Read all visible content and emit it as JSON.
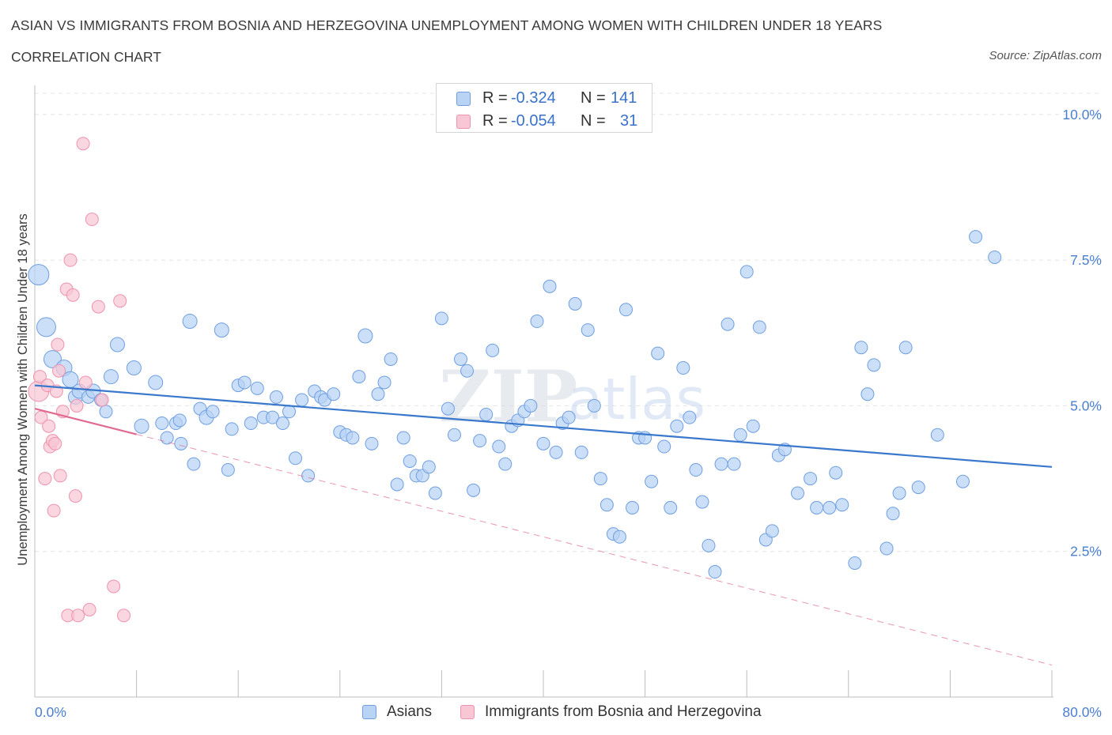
{
  "header": {
    "title": "ASIAN VS IMMIGRANTS FROM BOSNIA AND HERZEGOVINA UNEMPLOYMENT AMONG WOMEN WITH CHILDREN UNDER 18 YEARS",
    "subtitle": "CORRELATION CHART",
    "source": "Source: ZipAtlas.com"
  },
  "watermark": {
    "zip": "ZIP",
    "atlas": "atlas"
  },
  "legend_top": {
    "rows": [
      {
        "r_label": "R =",
        "r_value": "-0.324",
        "n_label": "N =",
        "n_value": "141"
      },
      {
        "r_label": "R =",
        "r_value": "-0.054",
        "n_label": "N =",
        "n_value": "31"
      }
    ]
  },
  "legend_bottom": {
    "items": [
      {
        "label": "Asians"
      },
      {
        "label": "Immigrants from Bosnia and Herzegovina"
      }
    ]
  },
  "colors": {
    "asian_fill": "#b9d3f5",
    "asian_stroke": "#6f9fe0",
    "asian_line": "#3a78cc",
    "bosnia_fill": "#f8c6d4",
    "bosnia_stroke": "#ee93ad",
    "bosnia_line": "#e06a90",
    "grid": "#e4e4e4",
    "axis_label": "#4a7fd0"
  },
  "chart_data": {
    "type": "scatter",
    "title": "ASIAN VS IMMIGRANTS FROM BOSNIA AND HERZEGOVINA UNEMPLOYMENT AMONG WOMEN WITH CHILDREN UNDER 18 YEARS",
    "xlabel": "",
    "ylabel": "Unemployment Among Women with Children Under 18 years",
    "xlim": [
      0,
      80
    ],
    "ylim": [
      0,
      10.5
    ],
    "x_tick_labels": [
      "0.0%",
      "80.0%"
    ],
    "y_ticks": [
      2.5,
      5.0,
      7.5,
      10.0
    ],
    "y_tick_labels": [
      "2.5%",
      "5.0%",
      "7.5%",
      "10.0%"
    ],
    "grid": true,
    "legend_position": "bottom-center",
    "series": [
      {
        "name": "Asians",
        "r": -0.324,
        "n": 141,
        "trend": {
          "x": [
            0,
            80
          ],
          "y": [
            5.35,
            3.95
          ]
        },
        "points": [
          [
            0.3,
            7.25,
            13
          ],
          [
            0.9,
            6.35,
            12
          ],
          [
            1.4,
            5.8,
            11
          ],
          [
            2.3,
            5.65,
            10
          ],
          [
            2.8,
            5.45,
            10
          ],
          [
            3.2,
            5.15,
            9
          ],
          [
            3.5,
            5.25,
            9
          ],
          [
            4.2,
            5.15,
            8
          ],
          [
            4.6,
            5.25,
            9
          ],
          [
            5.2,
            5.1,
            8
          ],
          [
            5.6,
            4.9,
            8
          ],
          [
            6.0,
            5.5,
            9
          ],
          [
            6.5,
            6.05,
            9
          ],
          [
            7.8,
            5.65,
            9
          ],
          [
            8.4,
            4.65,
            9
          ],
          [
            9.5,
            5.4,
            9
          ],
          [
            10.0,
            4.7,
            8
          ],
          [
            10.4,
            4.45,
            8
          ],
          [
            11.1,
            4.7,
            8
          ],
          [
            11.5,
            4.35,
            8
          ],
          [
            11.4,
            4.75,
            8
          ],
          [
            12.2,
            6.45,
            9
          ],
          [
            12.5,
            4.0,
            8
          ],
          [
            13.0,
            4.95,
            8
          ],
          [
            13.5,
            4.8,
            9
          ],
          [
            14.0,
            4.9,
            8
          ],
          [
            14.7,
            6.3,
            9
          ],
          [
            15.2,
            3.9,
            8
          ],
          [
            15.5,
            4.6,
            8
          ],
          [
            16.0,
            5.35,
            8
          ],
          [
            16.5,
            5.4,
            8
          ],
          [
            17.0,
            4.7,
            8
          ],
          [
            17.5,
            5.3,
            8
          ],
          [
            18.0,
            4.8,
            8
          ],
          [
            18.7,
            4.8,
            8
          ],
          [
            19.0,
            5.15,
            8
          ],
          [
            19.5,
            4.7,
            8
          ],
          [
            20.0,
            4.9,
            8
          ],
          [
            20.5,
            4.1,
            8
          ],
          [
            21.0,
            5.1,
            8
          ],
          [
            21.5,
            3.8,
            8
          ],
          [
            22.0,
            5.25,
            8
          ],
          [
            22.5,
            5.15,
            8
          ],
          [
            22.8,
            5.1,
            8
          ],
          [
            23.5,
            5.2,
            8
          ],
          [
            24.0,
            4.55,
            8
          ],
          [
            24.5,
            4.5,
            8
          ],
          [
            25.0,
            4.45,
            8
          ],
          [
            25.5,
            5.5,
            8
          ],
          [
            26.0,
            6.2,
            9
          ],
          [
            26.5,
            4.35,
            8
          ],
          [
            27.0,
            5.2,
            8
          ],
          [
            27.5,
            5.4,
            8
          ],
          [
            28.0,
            5.8,
            8
          ],
          [
            28.5,
            3.65,
            8
          ],
          [
            29.0,
            4.45,
            8
          ],
          [
            29.5,
            4.05,
            8
          ],
          [
            30.0,
            3.8,
            8
          ],
          [
            30.5,
            3.8,
            8
          ],
          [
            31.0,
            3.95,
            8
          ],
          [
            31.5,
            3.5,
            8
          ],
          [
            32.0,
            6.5,
            8
          ],
          [
            32.5,
            4.95,
            8
          ],
          [
            33.0,
            4.5,
            8
          ],
          [
            33.5,
            5.8,
            8
          ],
          [
            34.0,
            5.6,
            8
          ],
          [
            34.5,
            3.55,
            8
          ],
          [
            35.0,
            4.4,
            8
          ],
          [
            35.5,
            4.85,
            8
          ],
          [
            36.0,
            5.95,
            8
          ],
          [
            36.5,
            4.3,
            8
          ],
          [
            37.0,
            4.0,
            8
          ],
          [
            37.5,
            4.65,
            8
          ],
          [
            38.0,
            4.75,
            8
          ],
          [
            38.5,
            4.9,
            8
          ],
          [
            39.0,
            5.0,
            8
          ],
          [
            39.5,
            6.45,
            8
          ],
          [
            40.0,
            4.35,
            8
          ],
          [
            40.5,
            7.05,
            8
          ],
          [
            41.0,
            4.2,
            8
          ],
          [
            41.5,
            4.7,
            8
          ],
          [
            42.0,
            4.8,
            8
          ],
          [
            42.5,
            6.75,
            8
          ],
          [
            43.0,
            4.2,
            8
          ],
          [
            43.5,
            6.3,
            8
          ],
          [
            44.0,
            5.0,
            8
          ],
          [
            44.5,
            3.75,
            8
          ],
          [
            45.0,
            3.3,
            8
          ],
          [
            45.5,
            2.8,
            8
          ],
          [
            46.0,
            2.75,
            8
          ],
          [
            46.5,
            6.65,
            8
          ],
          [
            47.0,
            3.25,
            8
          ],
          [
            47.5,
            4.45,
            8
          ],
          [
            48.0,
            4.45,
            8
          ],
          [
            48.5,
            3.7,
            8
          ],
          [
            49.0,
            5.9,
            8
          ],
          [
            49.5,
            4.3,
            8
          ],
          [
            50.0,
            3.25,
            8
          ],
          [
            50.5,
            4.65,
            8
          ],
          [
            51.0,
            5.65,
            8
          ],
          [
            51.5,
            4.8,
            8
          ],
          [
            52.0,
            3.9,
            8
          ],
          [
            52.5,
            3.35,
            8
          ],
          [
            53.0,
            2.6,
            8
          ],
          [
            53.5,
            2.15,
            8
          ],
          [
            54.0,
            4.0,
            8
          ],
          [
            54.5,
            6.4,
            8
          ],
          [
            55.0,
            4.0,
            8
          ],
          [
            55.5,
            4.5,
            8
          ],
          [
            56.0,
            7.3,
            8
          ],
          [
            56.5,
            4.65,
            8
          ],
          [
            57.0,
            6.35,
            8
          ],
          [
            57.5,
            2.7,
            8
          ],
          [
            58.0,
            2.85,
            8
          ],
          [
            58.5,
            4.15,
            8
          ],
          [
            59.0,
            4.25,
            8
          ],
          [
            60.0,
            3.5,
            8
          ],
          [
            61.0,
            3.75,
            8
          ],
          [
            61.5,
            3.25,
            8
          ],
          [
            62.5,
            3.25,
            8
          ],
          [
            63.0,
            3.85,
            8
          ],
          [
            63.5,
            3.3,
            8
          ],
          [
            64.5,
            2.3,
            8
          ],
          [
            65.0,
            6.0,
            8
          ],
          [
            65.5,
            5.2,
            8
          ],
          [
            66.0,
            5.7,
            8
          ],
          [
            67.0,
            2.55,
            8
          ],
          [
            67.5,
            3.15,
            8
          ],
          [
            68.0,
            3.5,
            8
          ],
          [
            68.5,
            6.0,
            8
          ],
          [
            69.5,
            3.6,
            8
          ],
          [
            71.0,
            4.5,
            8
          ],
          [
            73.0,
            3.7,
            8
          ],
          [
            74.0,
            7.9,
            8
          ],
          [
            75.5,
            7.55,
            8
          ]
        ]
      },
      {
        "name": "Immigrants from Bosnia and Herzegovina",
        "r": -0.054,
        "n": 31,
        "trend": {
          "x": [
            0,
            80
          ],
          "y": [
            4.95,
            0.55
          ]
        },
        "points": [
          [
            0.3,
            5.25,
            13
          ],
          [
            0.4,
            5.5,
            8
          ],
          [
            0.5,
            4.8,
            8
          ],
          [
            0.8,
            3.75,
            8
          ],
          [
            1.0,
            5.35,
            8
          ],
          [
            1.1,
            4.65,
            8
          ],
          [
            1.2,
            4.3,
            8
          ],
          [
            1.4,
            4.4,
            8
          ],
          [
            1.5,
            3.2,
            8
          ],
          [
            1.6,
            4.35,
            8
          ],
          [
            1.7,
            5.25,
            8
          ],
          [
            1.8,
            6.05,
            8
          ],
          [
            1.9,
            5.6,
            8
          ],
          [
            2.0,
            3.8,
            8
          ],
          [
            2.2,
            4.9,
            8
          ],
          [
            2.5,
            7.0,
            8
          ],
          [
            2.6,
            1.4,
            8
          ],
          [
            2.8,
            7.5,
            8
          ],
          [
            3.0,
            6.9,
            8
          ],
          [
            3.2,
            3.45,
            8
          ],
          [
            3.3,
            5.0,
            8
          ],
          [
            3.4,
            1.4,
            8
          ],
          [
            3.8,
            9.5,
            8
          ],
          [
            4.0,
            5.4,
            8
          ],
          [
            4.3,
            1.5,
            8
          ],
          [
            4.5,
            8.2,
            8
          ],
          [
            5.0,
            6.7,
            8
          ],
          [
            5.3,
            5.1,
            8
          ],
          [
            6.2,
            1.9,
            8
          ],
          [
            6.7,
            6.8,
            8
          ],
          [
            7.0,
            1.4,
            8
          ]
        ]
      }
    ]
  },
  "axes": {
    "ylabel": "Unemployment Among Women with Children Under 18 years",
    "x_min_label": "0.0%",
    "x_max_label": "80.0%",
    "y_labels": [
      "2.5%",
      "5.0%",
      "7.5%",
      "10.0%"
    ]
  }
}
